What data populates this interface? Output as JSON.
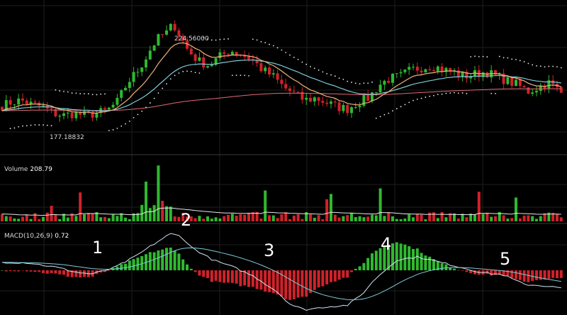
{
  "chart_data": {
    "type": "candlestick",
    "price_panel": {
      "high_label": "224.56000",
      "low_label": "177.18832",
      "ylim": [
        165,
        235
      ],
      "colors": {
        "up": "#2fb92f",
        "down": "#d1222a",
        "ma_fast": "#f0b27a",
        "ma_slow": "#7ecbd9",
        "ma_long": "#e06a74",
        "sar": "#e8e8e8"
      },
      "anchors": {
        "x": [
          0,
          15,
          30,
          45,
          60,
          75,
          90,
          105,
          120,
          135,
          150,
          165,
          180,
          195,
          205,
          215,
          225,
          235,
          245,
          255,
          265,
          280,
          295,
          310,
          325,
          340,
          355,
          370,
          385,
          400,
          415,
          430,
          445,
          460,
          475,
          490,
          505,
          520,
          535,
          550,
          565,
          580,
          595,
          610,
          625,
          640,
          655,
          670,
          685,
          700,
          715,
          730,
          745,
          760,
          775,
          790,
          800
        ],
        "close": [
          186,
          188,
          189,
          187,
          186,
          183,
          182,
          183,
          182,
          183,
          184,
          188,
          197,
          203,
          208,
          214,
          218,
          220,
          224,
          218,
          212,
          207,
          205,
          209,
          212,
          210,
          208,
          203,
          200,
          195,
          192,
          189,
          190,
          188,
          186,
          185,
          188,
          190,
          196,
          199,
          200,
          203,
          204,
          205,
          203,
          202,
          200,
          201,
          202,
          200,
          198,
          196,
          193,
          195,
          197,
          193,
          190
        ]
      }
    },
    "volume_panel": {
      "label": "Volume",
      "value_label": "208.79",
      "ylim": [
        0,
        240
      ]
    },
    "macd_panel": {
      "label": "MACD(10,26,9)",
      "value_label": "0.72",
      "ylim": [
        -6,
        6
      ],
      "macd_anchors": {
        "x": [
          0,
          40,
          80,
          110,
          130,
          160,
          190,
          215,
          240,
          255,
          270,
          300,
          330,
          360,
          390,
          410,
          430,
          460,
          490,
          510,
          530,
          560,
          590,
          620,
          650,
          680,
          710,
          740,
          770,
          800
        ],
        "y": [
          1.1,
          1.0,
          0.4,
          -0.3,
          -0.5,
          0.3,
          1.8,
          3.4,
          4.9,
          4.6,
          3.1,
          1.4,
          0.4,
          -0.9,
          -2.8,
          -4.6,
          -5.3,
          -4.9,
          -4.7,
          -3.3,
          -1.1,
          1.4,
          1.8,
          1.1,
          0.4,
          -0.3,
          -0.6,
          -1.9,
          -2.1,
          -2.5
        ]
      }
    },
    "annotations": [
      "1",
      "2",
      "3",
      "4",
      "5"
    ]
  }
}
